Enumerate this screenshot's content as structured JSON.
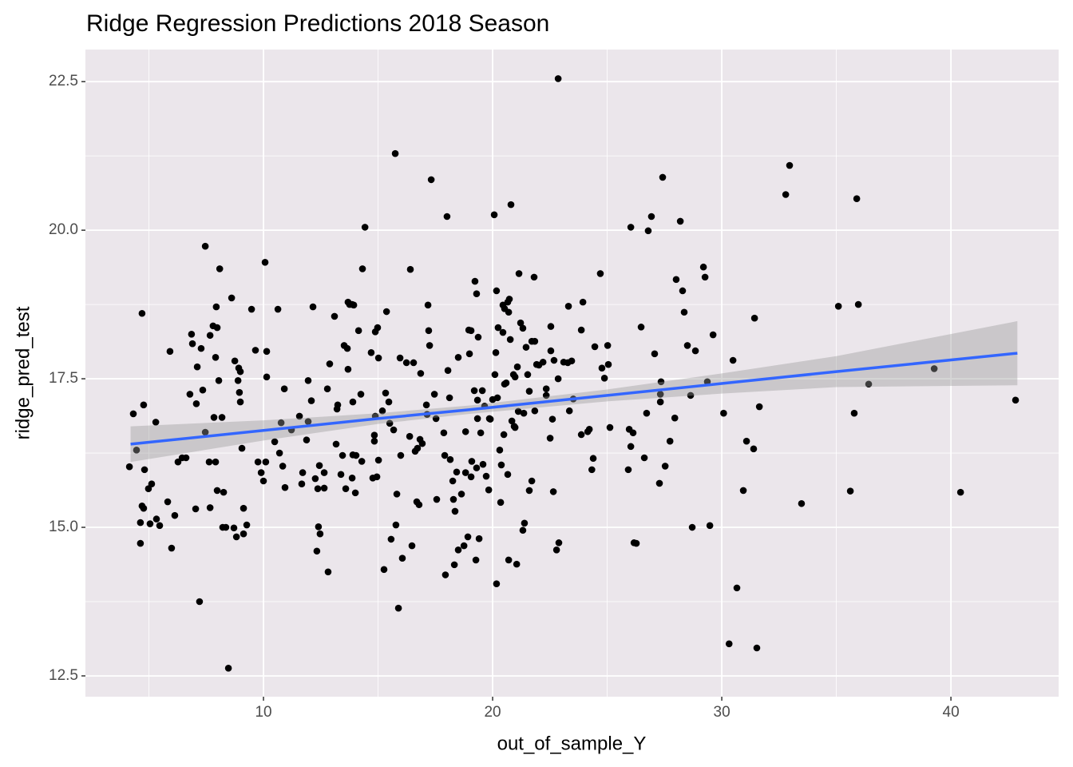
{
  "chart_data": {
    "type": "scatter",
    "title": "Ridge Regression Predictions 2018 Season",
    "x_label": "out_of_sample_Y",
    "y_label": "ridge_pred_test",
    "xlim": [
      2.23,
      44.7
    ],
    "ylim": [
      12.15,
      23.04
    ],
    "xticks": [
      10,
      20,
      30,
      40
    ],
    "yticks": [
      12.5,
      {
        "value": 15,
        "label": "15.0"
      },
      17.5,
      {
        "value": 20,
        "label": "20.0"
      },
      22.5
    ],
    "grid": true,
    "series": [
      {
        "color": "#000000",
        "x": [
          4.15,
          4.32,
          4.46,
          4.7,
          4.77,
          4.63,
          4.63,
          4.77,
          4.7,
          4.81,
          4.98,
          5.05,
          5.12,
          5.3,
          5.33,
          5.47,
          5.82,
          5.92,
          5.99,
          6.13,
          6.27,
          6.45,
          6.62,
          6.79,
          6.86,
          6.9,
          7.07,
          7.11,
          7.04,
          7.21,
          7.28,
          7.35,
          7.46,
          7.46,
          7.63,
          7.67,
          7.67,
          7.8,
          7.84,
          7.91,
          7.94,
          7.91,
          7.98,
          8.05,
          8.09,
          7.98,
          8.19,
          8.26,
          8.22,
          8.36,
          8.47,
          8.61,
          8.71,
          8.75,
          8.82,
          8.89,
          8.92,
          8.95,
          8.99,
          8.99,
          9.06,
          9.13,
          9.13,
          9.27,
          9.48,
          9.65,
          9.76,
          9.9,
          10.0,
          10.07,
          10.14,
          10.14,
          10.1,
          10.49,
          10.63,
          10.7,
          10.77,
          10.84,
          10.91,
          10.94,
          11.22,
          11.57,
          11.67,
          11.71,
          11.88,
          11.95,
          11.95,
          12.16,
          12.09,
          12.26,
          12.33,
          12.37,
          12.44,
          12.4,
          12.47,
          12.65,
          12.65,
          12.79,
          12.82,
          12.89,
          13.1,
          13.17,
          13.21,
          13.24,
          13.38,
          13.45,
          13.52,
          13.59,
          13.66,
          13.69,
          13.69,
          13.76,
          13.87,
          13.9,
          13.9,
          13.94,
          13.87,
          14.04,
          14.01,
          14.15,
          14.25,
          14.32,
          14.29,
          14.43,
          14.7,
          14.77,
          14.84,
          14.84,
          14.88,
          14.88,
          14.95,
          14.98,
          15.02,
          15.02,
          15.19,
          15.26,
          15.33,
          15.37,
          15.47,
          15.51,
          15.57,
          15.68,
          15.75,
          15.78,
          15.82,
          15.89,
          15.96,
          15.99,
          16.06,
          16.24,
          16.38,
          16.41,
          16.48,
          16.55,
          16.62,
          16.69,
          16.72,
          16.79,
          16.83,
          16.86,
          16.93,
          17.11,
          17.14,
          17.18,
          17.21,
          17.25,
          17.32,
          17.46,
          17.53,
          17.56,
          17.87,
          17.91,
          17.94,
          18.01,
          18.05,
          18.12,
          18.15,
          18.26,
          18.29,
          18.33,
          18.36,
          18.43,
          18.5,
          18.5,
          18.64,
          18.75,
          18.82,
          18.82,
          18.96,
          18.92,
          18.99,
          19.06,
          19.06,
          19.09,
          19.2,
          19.23,
          19.27,
          19.3,
          19.34,
          19.34,
          19.3,
          19.37,
          19.41,
          19.48,
          19.55,
          19.58,
          19.65,
          19.72,
          19.83,
          19.86,
          19.9,
          20.0,
          20.07,
          20.1,
          20.14,
          20.17,
          20.17,
          20.21,
          20.24,
          20.31,
          20.35,
          20.38,
          20.45,
          20.45,
          20.52,
          20.49,
          20.52,
          20.59,
          20.66,
          20.66,
          20.7,
          20.7,
          20.73,
          20.77,
          20.8,
          20.84,
          20.91,
          20.94,
          20.98,
          20.98,
          21.05,
          21.12,
          21.08,
          21.15,
          21.22,
          21.32,
          21.32,
          21.36,
          21.39,
          21.46,
          21.53,
          21.6,
          21.6,
          21.71,
          21.71,
          21.81,
          21.84,
          21.84,
          21.92,
          22.02,
          22.2,
          22.34,
          22.34,
          22.51,
          22.54,
          22.54,
          22.61,
          22.65,
          22.68,
          22.79,
          22.86,
          22.86,
          22.89,
          23.1,
          23.28,
          23.31,
          23.35,
          23.45,
          23.52,
          23.87,
          23.87,
          23.94,
          24.15,
          24.22,
          24.33,
          24.39,
          24.46,
          24.7,
          24.77,
          24.88,
          25.02,
          25.05,
          25.12,
          25.92,
          25.96,
          26.03,
          26.03,
          26.13,
          26.17,
          26.27,
          26.48,
          26.62,
          26.72,
          26.79,
          26.93,
          27.07,
          27.28,
          27.32,
          27.32,
          27.35,
          27.42,
          27.53,
          27.74,
          27.95,
          28.01,
          28.19,
          28.29,
          28.36,
          28.5,
          28.64,
          28.71,
          28.85,
          29.2,
          29.27,
          29.37,
          29.48,
          29.62,
          30.08,
          30.32,
          30.49,
          30.66,
          30.94,
          31.08,
          31.39,
          31.43,
          31.53,
          31.64,
          32.79,
          32.96,
          33.48,
          35.09,
          35.61,
          35.78,
          35.89,
          35.96,
          36.41,
          39.27,
          40.42,
          42.82
        ],
        "values": [
          16.02,
          16.91,
          16.3,
          18.6,
          17.06,
          14.73,
          15.08,
          15.32,
          15.36,
          15.97,
          15.65,
          15.06,
          15.73,
          16.77,
          15.14,
          15.03,
          15.43,
          17.96,
          14.65,
          15.2,
          16.1,
          16.17,
          16.17,
          17.24,
          18.25,
          18.09,
          17.08,
          17.7,
          15.31,
          13.75,
          18.01,
          17.31,
          19.73,
          16.6,
          16.1,
          18.23,
          15.33,
          18.39,
          16.85,
          16.1,
          18.71,
          17.86,
          15.62,
          17.47,
          19.35,
          18.36,
          16.85,
          15.59,
          15.0,
          15.0,
          12.63,
          18.86,
          14.99,
          17.8,
          14.84,
          17.47,
          17.68,
          17.27,
          17.11,
          17.62,
          16.33,
          15.32,
          14.89,
          15.04,
          18.67,
          17.98,
          16.1,
          15.92,
          15.78,
          19.46,
          17.96,
          17.53,
          16.1,
          16.44,
          18.67,
          16.25,
          16.76,
          16.03,
          17.33,
          15.67,
          16.64,
          16.87,
          15.73,
          15.92,
          16.47,
          16.78,
          17.47,
          18.71,
          17.13,
          15.82,
          14.6,
          15.65,
          16.04,
          15.01,
          14.89,
          15.66,
          15.92,
          17.33,
          14.25,
          17.75,
          18.55,
          16.4,
          16.99,
          17.06,
          15.89,
          16.21,
          18.06,
          15.65,
          18.01,
          17.66,
          18.79,
          18.75,
          15.83,
          16.22,
          17.11,
          18.74,
          18.75,
          16.21,
          15.58,
          18.31,
          17.24,
          19.35,
          16.11,
          20.05,
          17.94,
          15.83,
          16.45,
          16.55,
          18.29,
          16.87,
          15.85,
          18.36,
          17.85,
          16.13,
          16.96,
          14.29,
          17.26,
          18.63,
          17.11,
          16.75,
          14.8,
          16.64,
          21.29,
          15.04,
          15.56,
          13.64,
          17.85,
          16.21,
          14.48,
          17.77,
          16.53,
          19.34,
          14.69,
          17.77,
          16.28,
          15.43,
          16.33,
          15.38,
          16.48,
          17.59,
          16.41,
          17.06,
          16.9,
          18.74,
          18.31,
          18.06,
          20.85,
          17.24,
          16.83,
          15.47,
          16.59,
          16.21,
          14.2,
          20.23,
          17.64,
          17.18,
          16.14,
          15.78,
          15.47,
          14.37,
          15.27,
          15.93,
          17.86,
          14.62,
          15.56,
          14.69,
          16.61,
          15.92,
          18.32,
          14.84,
          17.92,
          18.31,
          15.85,
          16.11,
          17.3,
          19.14,
          14.45,
          18.93,
          17.14,
          16.83,
          16.0,
          18.2,
          14.81,
          16.59,
          17.3,
          16.06,
          17.04,
          15.86,
          15.63,
          16.83,
          16.82,
          17.15,
          20.26,
          17.57,
          17.94,
          18.98,
          14.05,
          17.18,
          18.36,
          16.3,
          15.42,
          16.05,
          18.28,
          18.74,
          18.68,
          16.56,
          17.41,
          17.43,
          15.89,
          18.79,
          14.45,
          18.62,
          18.84,
          18.16,
          20.43,
          16.79,
          17.57,
          16.7,
          16.68,
          17.53,
          14.38,
          16.95,
          17.7,
          19.27,
          18.44,
          14.95,
          18.35,
          16.92,
          15.07,
          18.03,
          17.57,
          15.62,
          17.29,
          15.78,
          18.13,
          19.21,
          18.13,
          16.96,
          17.74,
          17.73,
          17.78,
          17.33,
          17.22,
          16.5,
          18.38,
          17.97,
          16.82,
          15.6,
          17.81,
          14.62,
          22.55,
          17.5,
          14.74,
          17.78,
          17.77,
          18.72,
          16.96,
          17.8,
          17.16,
          16.56,
          18.32,
          18.79,
          16.61,
          16.65,
          15.97,
          16.16,
          18.04,
          19.27,
          17.68,
          17.51,
          18.06,
          17.74,
          16.68,
          15.97,
          16.65,
          16.36,
          20.05,
          16.59,
          14.74,
          14.73,
          18.37,
          16.17,
          16.92,
          19.99,
          20.23,
          17.92,
          15.74,
          17.24,
          17.11,
          17.45,
          20.89,
          16.03,
          16.45,
          16.84,
          19.17,
          20.15,
          18.98,
          18.62,
          18.06,
          17.22,
          15.0,
          17.97,
          19.38,
          19.21,
          17.45,
          15.03,
          18.24,
          16.92,
          13.04,
          17.81,
          13.98,
          15.62,
          16.45,
          16.32,
          18.52,
          12.97,
          17.03,
          20.6,
          21.09,
          15.4,
          18.72,
          15.61,
          16.92,
          20.53,
          18.75,
          17.41,
          17.67,
          15.59,
          17.14
        ]
      }
    ],
    "fit": {
      "color": "#3366ff",
      "band_color": "#999999",
      "x": [
        4.2,
        10,
        15,
        19,
        25,
        30,
        35,
        42.9
      ],
      "y": [
        16.4,
        16.63,
        16.83,
        16.98,
        17.22,
        17.42,
        17.62,
        17.93
      ],
      "lower": [
        16.1,
        16.46,
        16.74,
        16.91,
        17.12,
        17.25,
        17.36,
        17.39
      ],
      "upper": [
        16.7,
        16.8,
        16.92,
        17.05,
        17.32,
        17.59,
        17.88,
        18.47
      ]
    }
  }
}
